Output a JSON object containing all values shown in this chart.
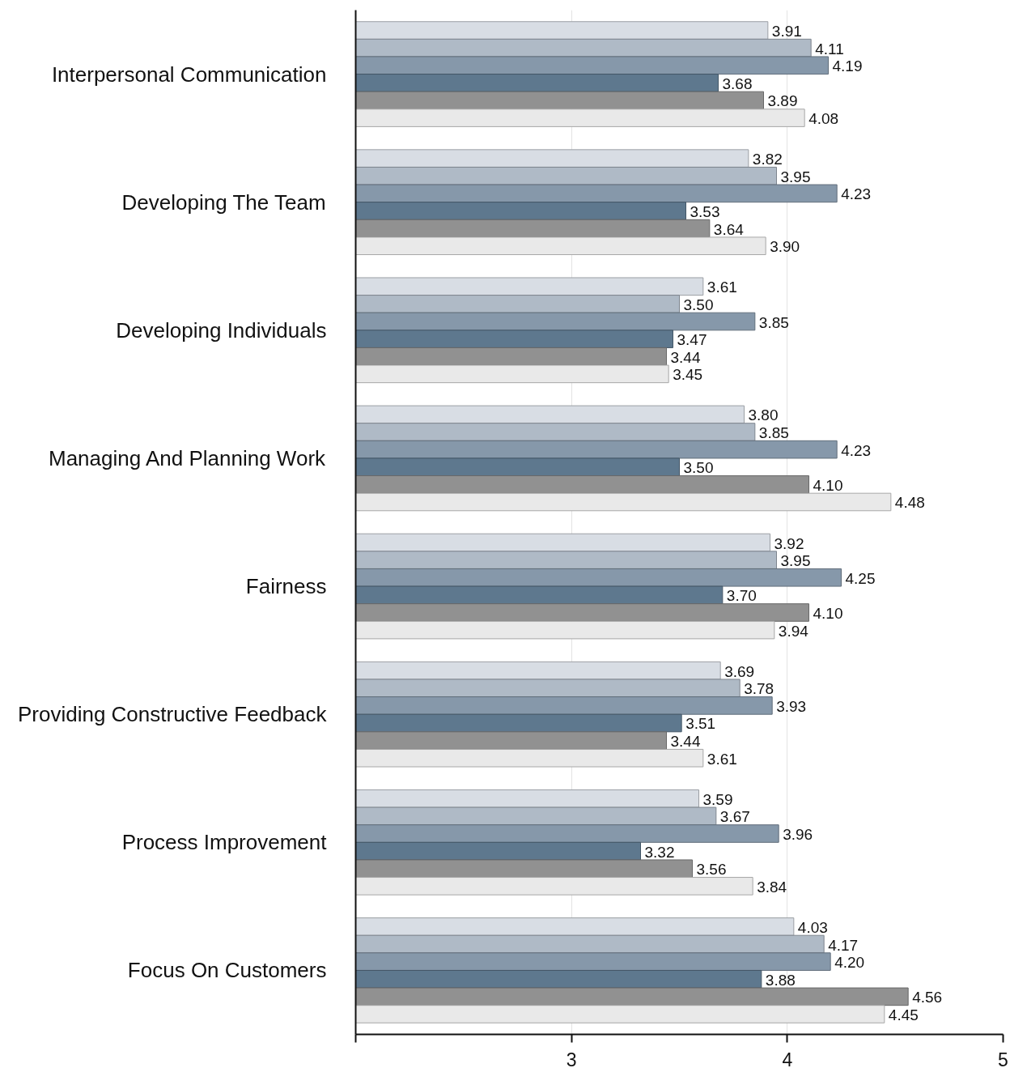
{
  "chart_data": {
    "type": "bar",
    "orientation": "horizontal",
    "categories": [
      "Interpersonal Communication",
      "Developing The Team",
      "Developing Individuals",
      "Managing And Planning Work",
      "Fairness",
      "Providing Constructive Feedback",
      "Process Improvement",
      "Focus On Customers"
    ],
    "series": [
      {
        "color": "#d8dde4",
        "values": [
          3.91,
          3.82,
          3.61,
          3.8,
          3.92,
          3.69,
          3.59,
          4.03
        ],
        "value_labels": [
          "3.91",
          "3.82",
          "3.61",
          "3.80",
          "3.92",
          "3.69",
          "3.59",
          "4.03"
        ]
      },
      {
        "color": "#afbac6",
        "values": [
          4.11,
          3.95,
          3.5,
          3.85,
          3.95,
          3.78,
          3.67,
          4.17
        ],
        "value_labels": [
          "4.11",
          "3.95",
          "3.50",
          "3.85",
          "3.95",
          "3.78",
          "3.67",
          "4.17"
        ]
      },
      {
        "color": "#8698aa",
        "values": [
          4.19,
          4.23,
          3.85,
          4.23,
          4.25,
          3.93,
          3.96,
          4.2
        ],
        "value_labels": [
          "4.19",
          "4.23",
          "3.85",
          "4.23",
          "4.25",
          "3.93",
          "3.96",
          "4.20"
        ]
      },
      {
        "color": "#5e788e",
        "values": [
          3.68,
          3.53,
          3.47,
          3.5,
          3.7,
          3.51,
          3.32,
          3.88
        ],
        "value_labels": [
          "3.68",
          "3.53",
          "3.47",
          "3.50",
          "3.70",
          "3.51",
          "3.32",
          "3.88"
        ]
      },
      {
        "color": "#919191",
        "values": [
          3.89,
          3.64,
          3.44,
          4.1,
          4.1,
          3.44,
          3.56,
          4.56
        ],
        "value_labels": [
          "3.89",
          "3.64",
          "3.44",
          "4.10",
          "4.10",
          "3.44",
          "3.56",
          "4.56"
        ]
      },
      {
        "color": "#e9e9e9",
        "values": [
          4.08,
          3.9,
          3.45,
          4.48,
          3.94,
          3.61,
          3.84,
          4.45
        ],
        "value_labels": [
          "4.08",
          "3.90",
          "3.45",
          "4.48",
          "3.94",
          "3.61",
          "3.84",
          "4.45"
        ]
      }
    ],
    "xlim": [
      2,
      5
    ],
    "xticks": [
      {
        "value": 2,
        "label": null
      },
      3,
      4,
      5
    ],
    "grid": "x"
  }
}
